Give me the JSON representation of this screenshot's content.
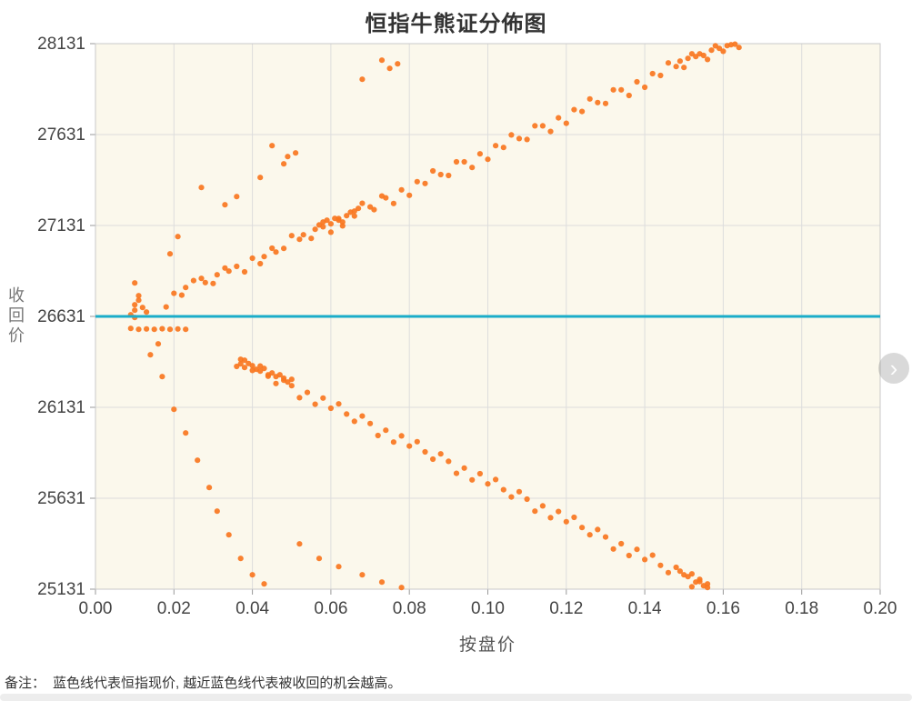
{
  "note": {
    "prefix": "备注：",
    "text": "蓝色线代表恒指现价, 越近蓝色线代表被收回的机会越高。"
  },
  "carousel": {
    "next_icon": "›"
  },
  "chart_data": {
    "type": "scatter",
    "title": "恒指牛熊证分佈图",
    "xlabel": "按盘价",
    "ylabel": "收回价",
    "xlim": [
      0,
      0.2
    ],
    "ylim": [
      25131,
      28131
    ],
    "grid": true,
    "x_tick_values": [
      0.0,
      0.02,
      0.04,
      0.06,
      0.08,
      0.1,
      0.12,
      0.14,
      0.16,
      0.18,
      0.2
    ],
    "x_tick_labels": [
      "0.00",
      "0.02",
      "0.04",
      "0.06",
      "0.08",
      "0.10",
      "0.12",
      "0.14",
      "0.16",
      "0.18",
      "0.20"
    ],
    "y_tick_values": [
      25131,
      25631,
      26131,
      26631,
      27131,
      27631,
      28131
    ],
    "y_tick_labels": [
      "25131",
      "25631",
      "26131",
      "26631",
      "27131",
      "27631",
      "28131"
    ],
    "colors": {
      "points": "#f8761f",
      "reference_line": "#1badc9",
      "plot_bg": "#fbf8ec",
      "grid": "#dddddd",
      "border": "#c9c9c9",
      "tick_text": "#444444"
    },
    "reference_line": {
      "y": 26631
    },
    "series": [
      {
        "name": "bull-band",
        "points": [
          [
            0.018,
            26683
          ],
          [
            0.02,
            26758
          ],
          [
            0.022,
            26748
          ],
          [
            0.023,
            26790
          ],
          [
            0.025,
            26828
          ],
          [
            0.027,
            26840
          ],
          [
            0.028,
            26817
          ],
          [
            0.03,
            26812
          ],
          [
            0.031,
            26860
          ],
          [
            0.033,
            26897
          ],
          [
            0.034,
            26880
          ],
          [
            0.036,
            26906
          ],
          [
            0.038,
            26876
          ],
          [
            0.04,
            26951
          ],
          [
            0.042,
            26921
          ],
          [
            0.043,
            26960
          ],
          [
            0.045,
            27006
          ],
          [
            0.046,
            26985
          ],
          [
            0.048,
            27005
          ],
          [
            0.05,
            27075
          ],
          [
            0.052,
            27055
          ],
          [
            0.053,
            27080
          ],
          [
            0.055,
            27060
          ],
          [
            0.056,
            27110
          ],
          [
            0.057,
            27134
          ],
          [
            0.058,
            27124
          ],
          [
            0.058,
            27150
          ],
          [
            0.059,
            27160
          ],
          [
            0.06,
            27094
          ],
          [
            0.06,
            27140
          ],
          [
            0.061,
            27170
          ],
          [
            0.062,
            27169
          ],
          [
            0.062,
            27160
          ],
          [
            0.063,
            27129
          ],
          [
            0.063,
            27150
          ],
          [
            0.064,
            27185
          ],
          [
            0.065,
            27204
          ],
          [
            0.066,
            27183
          ],
          [
            0.066,
            27210
          ],
          [
            0.067,
            27225
          ],
          [
            0.068,
            27253
          ],
          [
            0.07,
            27233
          ],
          [
            0.071,
            27218
          ],
          [
            0.073,
            27293
          ],
          [
            0.074,
            27283
          ],
          [
            0.076,
            27252
          ],
          [
            0.078,
            27327
          ],
          [
            0.08,
            27297
          ],
          [
            0.082,
            27372
          ],
          [
            0.084,
            27362
          ],
          [
            0.086,
            27431
          ],
          [
            0.088,
            27411
          ],
          [
            0.09,
            27406
          ],
          [
            0.092,
            27481
          ],
          [
            0.094,
            27481
          ],
          [
            0.096,
            27450
          ],
          [
            0.098,
            27525
          ],
          [
            0.1,
            27495
          ],
          [
            0.102,
            27570
          ],
          [
            0.104,
            27560
          ],
          [
            0.106,
            27629
          ],
          [
            0.108,
            27609
          ],
          [
            0.11,
            27604
          ],
          [
            0.112,
            27679
          ],
          [
            0.114,
            27679
          ],
          [
            0.116,
            27648
          ],
          [
            0.118,
            27723
          ],
          [
            0.12,
            27693
          ],
          [
            0.122,
            27768
          ],
          [
            0.124,
            27758
          ],
          [
            0.126,
            27827
          ],
          [
            0.128,
            27807
          ],
          [
            0.13,
            27802
          ],
          [
            0.132,
            27877
          ],
          [
            0.134,
            27877
          ],
          [
            0.136,
            27846
          ],
          [
            0.138,
            27921
          ],
          [
            0.14,
            27891
          ],
          [
            0.142,
            27966
          ],
          [
            0.144,
            27956
          ],
          [
            0.146,
            28025
          ],
          [
            0.148,
            28005
          ],
          [
            0.149,
            28035
          ],
          [
            0.15,
            28000
          ],
          [
            0.151,
            28050
          ],
          [
            0.152,
            28075
          ],
          [
            0.153,
            28060
          ],
          [
            0.154,
            28075
          ],
          [
            0.155,
            28066
          ],
          [
            0.156,
            28044
          ],
          [
            0.157,
            28095
          ],
          [
            0.158,
            28119
          ],
          [
            0.159,
            28105
          ],
          [
            0.16,
            28089
          ],
          [
            0.161,
            28120
          ],
          [
            0.162,
            28125
          ],
          [
            0.163,
            28128
          ],
          [
            0.164,
            28110
          ]
        ]
      },
      {
        "name": "bull-outliers",
        "points": [
          [
            0.019,
            26975
          ],
          [
            0.021,
            27070
          ],
          [
            0.027,
            27340
          ],
          [
            0.033,
            27245
          ],
          [
            0.036,
            27290
          ],
          [
            0.042,
            27395
          ],
          [
            0.045,
            27570
          ],
          [
            0.048,
            27470
          ],
          [
            0.049,
            27510
          ],
          [
            0.051,
            27530
          ],
          [
            0.068,
            27935
          ],
          [
            0.073,
            28040
          ],
          [
            0.075,
            27995
          ],
          [
            0.077,
            28020
          ]
        ]
      },
      {
        "name": "near-call-cluster",
        "points": [
          [
            0.009,
            26640
          ],
          [
            0.01,
            26665
          ],
          [
            0.01,
            26695
          ],
          [
            0.01,
            26815
          ],
          [
            0.011,
            26720
          ],
          [
            0.011,
            26745
          ],
          [
            0.012,
            26680
          ],
          [
            0.013,
            26655
          ],
          [
            0.01,
            26625
          ],
          [
            0.009,
            26565
          ],
          [
            0.011,
            26560
          ],
          [
            0.013,
            26562
          ],
          [
            0.015,
            26560
          ],
          [
            0.017,
            26563
          ],
          [
            0.019,
            26560
          ],
          [
            0.021,
            26562
          ],
          [
            0.023,
            26560
          ]
        ]
      },
      {
        "name": "bear-band",
        "points": [
          [
            0.036,
            26356
          ],
          [
            0.037,
            26395
          ],
          [
            0.037,
            26370
          ],
          [
            0.038,
            26390
          ],
          [
            0.038,
            26350
          ],
          [
            0.039,
            26372
          ],
          [
            0.04,
            26334
          ],
          [
            0.04,
            26360
          ],
          [
            0.041,
            26340
          ],
          [
            0.042,
            26358
          ],
          [
            0.042,
            26330
          ],
          [
            0.043,
            26345
          ],
          [
            0.044,
            26302
          ],
          [
            0.044,
            26310
          ],
          [
            0.045,
            26320
          ],
          [
            0.046,
            26262
          ],
          [
            0.046,
            26300
          ],
          [
            0.047,
            26310
          ],
          [
            0.048,
            26291
          ],
          [
            0.048,
            26280
          ],
          [
            0.049,
            26270
          ],
          [
            0.05,
            26250
          ],
          [
            0.05,
            26285
          ],
          [
            0.052,
            26184
          ],
          [
            0.054,
            26213
          ],
          [
            0.056,
            26148
          ],
          [
            0.058,
            26182
          ],
          [
            0.06,
            26126
          ],
          [
            0.062,
            26150
          ],
          [
            0.064,
            26094
          ],
          [
            0.066,
            26054
          ],
          [
            0.068,
            26083
          ],
          [
            0.07,
            26042
          ],
          [
            0.072,
            25976
          ],
          [
            0.074,
            26005
          ],
          [
            0.076,
            25940
          ],
          [
            0.078,
            25974
          ],
          [
            0.08,
            25918
          ],
          [
            0.082,
            25942
          ],
          [
            0.084,
            25886
          ],
          [
            0.086,
            25846
          ],
          [
            0.088,
            25875
          ],
          [
            0.09,
            25834
          ],
          [
            0.092,
            25768
          ],
          [
            0.094,
            25797
          ],
          [
            0.096,
            25732
          ],
          [
            0.098,
            25766
          ],
          [
            0.1,
            25710
          ],
          [
            0.102,
            25734
          ],
          [
            0.104,
            25678
          ],
          [
            0.106,
            25638
          ],
          [
            0.108,
            25667
          ],
          [
            0.11,
            25626
          ],
          [
            0.112,
            25560
          ],
          [
            0.114,
            25589
          ],
          [
            0.116,
            25524
          ],
          [
            0.118,
            25558
          ],
          [
            0.12,
            25502
          ],
          [
            0.122,
            25526
          ],
          [
            0.124,
            25470
          ],
          [
            0.126,
            25430
          ],
          [
            0.128,
            25459
          ],
          [
            0.13,
            25418
          ],
          [
            0.132,
            25352
          ],
          [
            0.134,
            25381
          ],
          [
            0.136,
            25316
          ],
          [
            0.138,
            25350
          ],
          [
            0.14,
            25294
          ],
          [
            0.142,
            25318
          ],
          [
            0.144,
            25262
          ],
          [
            0.146,
            25222
          ],
          [
            0.148,
            25251
          ],
          [
            0.149,
            25230
          ],
          [
            0.15,
            25210
          ],
          [
            0.151,
            25200
          ],
          [
            0.152,
            25144
          ],
          [
            0.152,
            25215
          ],
          [
            0.153,
            25170
          ],
          [
            0.154,
            25173
          ],
          [
            0.154,
            25185
          ],
          [
            0.155,
            25150
          ],
          [
            0.156,
            25140
          ],
          [
            0.156,
            25160
          ]
        ]
      },
      {
        "name": "bear-outliers",
        "points": [
          [
            0.014,
            26420
          ],
          [
            0.016,
            26480
          ],
          [
            0.017,
            26300
          ],
          [
            0.02,
            26120
          ],
          [
            0.023,
            25990
          ],
          [
            0.026,
            25840
          ],
          [
            0.029,
            25690
          ],
          [
            0.031,
            25560
          ],
          [
            0.034,
            25430
          ],
          [
            0.037,
            25300
          ],
          [
            0.04,
            25210
          ],
          [
            0.043,
            25160
          ],
          [
            0.052,
            25380
          ],
          [
            0.057,
            25300
          ],
          [
            0.062,
            25255
          ],
          [
            0.068,
            25210
          ],
          [
            0.073,
            25170
          ],
          [
            0.078,
            25140
          ]
        ]
      }
    ]
  }
}
